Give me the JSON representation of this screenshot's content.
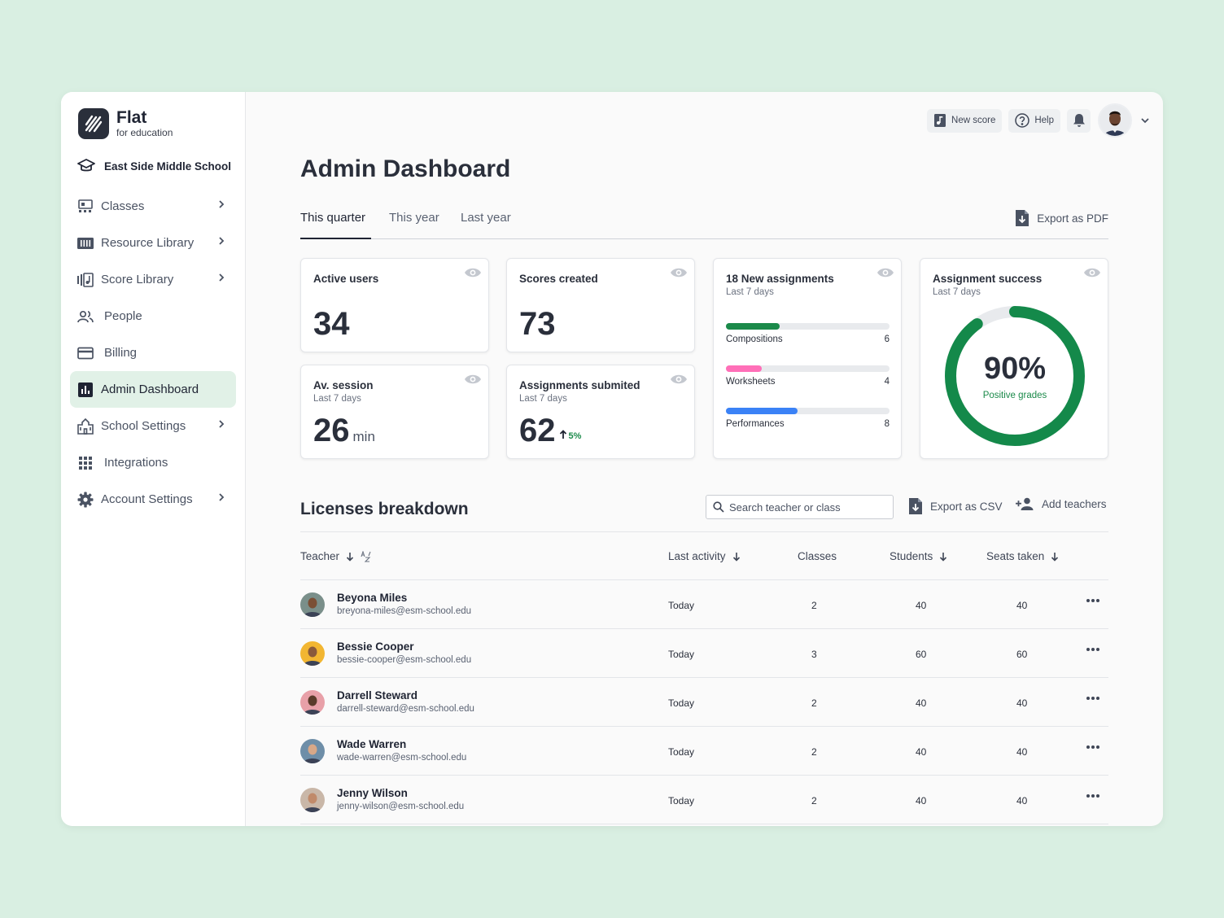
{
  "app": {
    "logo_title": "Flat",
    "logo_subtitle": "for education",
    "school": "East Side Middle School"
  },
  "sidebar": {
    "items": [
      {
        "label": "Classes",
        "icon": "classes-icon",
        "chevron": true
      },
      {
        "label": "Resource Library",
        "icon": "library-icon",
        "chevron": true
      },
      {
        "label": "Score Library",
        "icon": "score-library-icon",
        "chevron": true
      },
      {
        "label": "People",
        "icon": "people-icon",
        "chevron": false
      },
      {
        "label": "Billing",
        "icon": "billing-icon",
        "chevron": false
      },
      {
        "label": "Admin Dashboard",
        "icon": "chart-icon",
        "chevron": false,
        "active": true
      },
      {
        "label": "School Settings",
        "icon": "school-icon",
        "chevron": true
      },
      {
        "label": "Integrations",
        "icon": "grid-icon",
        "chevron": false
      },
      {
        "label": "Account Settings",
        "icon": "gear-icon",
        "chevron": true
      }
    ]
  },
  "topbar": {
    "new_score": "New score",
    "help": "Help"
  },
  "page": {
    "title": "Admin Dashboard"
  },
  "tabs": {
    "items": [
      "This quarter",
      "This year",
      "Last year"
    ],
    "export_pdf": "Export as PDF"
  },
  "stats": {
    "active_users": {
      "title": "Active users",
      "value": "34"
    },
    "scores_created": {
      "title": "Scores created",
      "value": "73"
    },
    "av_session": {
      "title": "Av. session",
      "sub": "Last 7 days",
      "value": "26",
      "unit": "min"
    },
    "assignments_submitted": {
      "title": "Assignments submited",
      "sub": "Last 7 days",
      "value": "62",
      "trend": "5%"
    },
    "new_assignments": {
      "title": "18 New assignments",
      "sub": "Last 7 days",
      "bars": [
        {
          "label": "Compositions",
          "count": "6",
          "fraction": 0.33,
          "color": "#1b8a4a"
        },
        {
          "label": "Worksheets",
          "count": "4",
          "fraction": 0.22,
          "color": "#ff6fb8"
        },
        {
          "label": "Performances",
          "count": "8",
          "fraction": 0.44,
          "color": "#3b82f6"
        }
      ]
    },
    "assignment_success": {
      "title": "Assignment success",
      "sub": "Last 7 days",
      "value": "90%",
      "label": "Positive grades",
      "fraction": 0.9,
      "color": "#14894a"
    }
  },
  "licenses": {
    "title": "Licenses breakdown",
    "search_placeholder": "Search teacher or class",
    "export_csv": "Export as CSV",
    "add_teachers": "Add teachers",
    "columns": {
      "teacher": "Teacher",
      "last_activity": "Last activity",
      "classes": "Classes",
      "students": "Students",
      "seats": "Seats taken"
    },
    "rows": [
      {
        "name": "Beyona Miles",
        "email": "breyona-miles@esm-school.edu",
        "last": "Today",
        "classes": "2",
        "students": "40",
        "seats": "40",
        "bg": "#7a8f8a",
        "skin": "#7b4f35"
      },
      {
        "name": "Bessie Cooper",
        "email": "bessie-cooper@esm-school.edu",
        "last": "Today",
        "classes": "3",
        "students": "60",
        "seats": "60",
        "bg": "#f2b632",
        "skin": "#8a5a3c"
      },
      {
        "name": "Darrell Steward",
        "email": "darrell-steward@esm-school.edu",
        "last": "Today",
        "classes": "2",
        "students": "40",
        "seats": "40",
        "bg": "#e8a0a8",
        "skin": "#5a3a2a"
      },
      {
        "name": "Wade Warren",
        "email": "wade-warren@esm-school.edu",
        "last": "Today",
        "classes": "2",
        "students": "40",
        "seats": "40",
        "bg": "#6e8ea8",
        "skin": "#d8a888"
      },
      {
        "name": "Jenny Wilson",
        "email": "jenny-wilson@esm-school.edu",
        "last": "Today",
        "classes": "2",
        "students": "40",
        "seats": "40",
        "bg": "#c9b7a8",
        "skin": "#c08a6a"
      }
    ]
  }
}
